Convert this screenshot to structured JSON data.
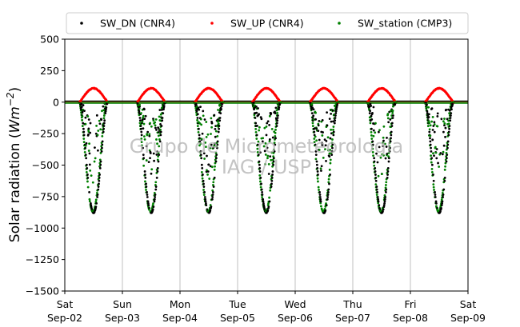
{
  "chart_data": {
    "type": "scatter",
    "title": "",
    "ylabel": "Solar radiation (Wm−2)",
    "ylabel_parts": {
      "text": "Solar radiation (",
      "math": "Wm",
      "sup": "−2",
      "close": ")"
    },
    "xlabel": "",
    "ylim": [
      -1500,
      500
    ],
    "yticks": [
      500,
      250,
      0,
      -250,
      -500,
      -750,
      -1000,
      -1250,
      -1500
    ],
    "ytick_labels": [
      "500",
      "250",
      "0",
      "−250",
      "−500",
      "−750",
      "−1000",
      "−1250",
      "−1500"
    ],
    "xlim_days": [
      0,
      7
    ],
    "xticks": [
      {
        "day": 0,
        "label1": "Sat",
        "label2": "Sep-02"
      },
      {
        "day": 1,
        "label1": "Sun",
        "label2": "Sep-03"
      },
      {
        "day": 2,
        "label1": "Mon",
        "label2": "Sep-04"
      },
      {
        "day": 3,
        "label1": "Tue",
        "label2": "Sep-05"
      },
      {
        "day": 4,
        "label1": "Wed",
        "label2": "Sep-06"
      },
      {
        "day": 5,
        "label1": "Thu",
        "label2": "Sep-07"
      },
      {
        "day": 6,
        "label1": "Fri",
        "label2": "Sep-08"
      },
      {
        "day": 7,
        "label1": "Sat",
        "label2": "Sep-09"
      }
    ],
    "grid": "vertical",
    "legend_position": "top",
    "series": [
      {
        "name": "SW_DN (CNR4)",
        "color": "#000000",
        "peak": -880,
        "sign": "neg",
        "night": 0
      },
      {
        "name": "SW_UP (CNR4)",
        "color": "#ff0000",
        "peak": 110,
        "sign": "pos",
        "night": 0
      },
      {
        "name": "SW_station (CMP3)",
        "color": "#008000",
        "peak": -870,
        "sign": "neg",
        "night": 0
      }
    ],
    "diurnal_window_hours": [
      6,
      18
    ],
    "watermark": [
      "Grupo de Micrometeorologia",
      "IAG / USP"
    ]
  }
}
